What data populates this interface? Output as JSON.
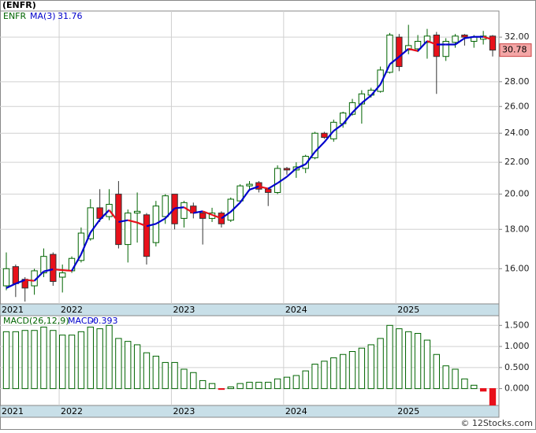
{
  "watermark": "© 12Stocks.com",
  "chart_data": [
    {
      "type": "candlestick",
      "title": "(ENFR)",
      "symbol": "ENFR",
      "categories": [
        "2021",
        null,
        null,
        null,
        null,
        null,
        null,
        "2022",
        null,
        null,
        null,
        null,
        null,
        null,
        null,
        null,
        null,
        null,
        null,
        "2023",
        null,
        null,
        null,
        null,
        null,
        null,
        null,
        null,
        null,
        null,
        null,
        "2024",
        null,
        null,
        null,
        null,
        null,
        null,
        null,
        null,
        null,
        null,
        null,
        "2025",
        null,
        null,
        null,
        null,
        null,
        null,
        null,
        null,
        null
      ],
      "open": [
        15.2,
        16.1,
        15.5,
        15.2,
        15.8,
        16.7,
        15.6,
        15.9,
        16.4,
        17.5,
        19.2,
        18.7,
        20.0,
        17.2,
        18.9,
        18.8,
        17.3,
        18.7,
        20.0,
        18.6,
        19.3,
        18.9,
        18.6,
        18.9,
        18.5,
        19.6,
        20.5,
        20.7,
        20.3,
        20.1,
        21.6,
        21.5,
        21.6,
        22.3,
        24.0,
        23.6,
        24.7,
        25.4,
        26.2,
        26.9,
        27.2,
        28.8,
        32.0,
        30.8,
        30.9,
        31.5,
        32.2,
        30.2,
        31.5,
        32.2,
        31.6,
        31.8,
        32.1
      ],
      "high": [
        16.8,
        16.2,
        15.6,
        16.0,
        17.0,
        16.8,
        16.2,
        16.6,
        18.1,
        19.7,
        20.3,
        20.3,
        20.8,
        19.1,
        20.1,
        18.9,
        19.6,
        20.0,
        20.0,
        19.6,
        19.5,
        19.0,
        19.2,
        19.0,
        19.8,
        20.6,
        20.8,
        20.8,
        20.4,
        21.8,
        21.7,
        22.0,
        22.5,
        24.1,
        24.1,
        25.0,
        25.6,
        26.6,
        27.3,
        27.5,
        29.3,
        32.4,
        32.3,
        33.2,
        32.2,
        32.8,
        32.5,
        31.9,
        32.3,
        32.3,
        32.2,
        32.6,
        32.2
      ],
      "low": [
        15.0,
        14.7,
        14.5,
        14.8,
        15.6,
        15.2,
        14.9,
        15.8,
        16.3,
        17.4,
        18.4,
        18.5,
        17.0,
        16.3,
        17.3,
        16.2,
        17.1,
        18.3,
        18.0,
        18.1,
        18.6,
        17.2,
        18.4,
        18.1,
        18.4,
        19.5,
        20.2,
        20.1,
        19.3,
        20.0,
        21.2,
        21.0,
        21.3,
        22.2,
        23.6,
        23.4,
        24.4,
        25.3,
        24.7,
        26.7,
        27.1,
        28.7,
        28.9,
        30.4,
        30.6,
        30.0,
        27.0,
        29.8,
        31.0,
        31.2,
        31.0,
        31.3,
        30.2
      ],
      "close": [
        16.0,
        15.3,
        15.1,
        15.9,
        16.6,
        15.4,
        15.8,
        16.5,
        17.8,
        19.2,
        18.6,
        19.4,
        17.2,
        18.9,
        19.0,
        16.6,
        19.3,
        19.9,
        18.3,
        19.5,
        18.9,
        18.6,
        18.9,
        18.3,
        19.7,
        20.5,
        20.6,
        20.3,
        20.1,
        21.6,
        21.5,
        21.7,
        22.4,
        24.0,
        23.7,
        24.8,
        25.5,
        26.3,
        27.0,
        27.3,
        29.0,
        32.2,
        29.3,
        31.2,
        31.6,
        32.1,
        30.2,
        31.6,
        32.1,
        32.0,
        32.0,
        32.1,
        30.78
      ],
      "up_color": "#006400",
      "down_color": "#e8101a",
      "ma": {
        "name": "MA(3)",
        "up_color": "#0000cc",
        "down_color": "#e8101a",
        "values": [
          15.1,
          15.3,
          15.47,
          15.43,
          15.87,
          15.97,
          15.93,
          15.9,
          16.7,
          17.83,
          18.53,
          19.07,
          18.4,
          18.5,
          18.37,
          18.17,
          18.3,
          18.6,
          19.17,
          19.23,
          18.9,
          19.0,
          18.8,
          18.6,
          18.97,
          19.5,
          20.27,
          20.47,
          20.33,
          20.67,
          21.07,
          21.6,
          21.87,
          22.7,
          23.37,
          24.17,
          24.67,
          25.53,
          26.27,
          26.87,
          27.77,
          29.5,
          30.17,
          30.9,
          30.7,
          31.63,
          31.3,
          31.3,
          31.3,
          31.9,
          32.03,
          32.03,
          31.76
        ]
      },
      "ylim": [
        14.4,
        34.6
      ],
      "log_scale": true,
      "grid": true,
      "yticks": [
        {
          "value": 16,
          "label": "16.00"
        },
        {
          "value": 18,
          "label": "18.00"
        },
        {
          "value": 20,
          "label": "20.00"
        },
        {
          "value": 22,
          "label": "22.00"
        },
        {
          "value": 24,
          "label": "24.00"
        },
        {
          "value": 26,
          "label": "26.00"
        },
        {
          "value": 28,
          "label": "28.00"
        },
        {
          "value": 32,
          "label": "32.00"
        }
      ]
    },
    {
      "type": "bar",
      "title": "MACD(26,12,9)",
      "value_prefix": "MACD:",
      "categories": [
        "2021",
        null,
        null,
        null,
        null,
        null,
        null,
        "2022",
        null,
        null,
        null,
        null,
        null,
        null,
        null,
        null,
        null,
        null,
        null,
        "2023",
        null,
        null,
        null,
        null,
        null,
        null,
        null,
        null,
        null,
        null,
        null,
        "2024",
        null,
        null,
        null,
        null,
        null,
        null,
        null,
        null,
        null,
        null,
        null,
        "2025",
        null,
        null,
        null,
        null,
        null,
        null,
        null,
        null,
        null
      ],
      "values": [
        1.35,
        1.35,
        1.38,
        1.38,
        1.46,
        1.38,
        1.27,
        1.27,
        1.35,
        1.46,
        1.42,
        1.5,
        1.19,
        1.12,
        1.04,
        0.85,
        0.77,
        0.62,
        0.62,
        0.46,
        0.38,
        0.19,
        0.12,
        -0.02,
        0.04,
        0.12,
        0.15,
        0.15,
        0.15,
        0.23,
        0.27,
        0.31,
        0.42,
        0.58,
        0.65,
        0.73,
        0.81,
        0.88,
        0.96,
        1.04,
        1.19,
        1.5,
        1.42,
        1.35,
        1.31,
        1.15,
        0.81,
        0.54,
        0.46,
        0.23,
        0.08,
        -0.06,
        -0.393
      ],
      "up_color": "#006400",
      "down_color": "#e8101a",
      "ylim": [
        -0.4,
        1.73
      ],
      "grid": true,
      "yticks": [
        {
          "value": 0,
          "label": "0.000"
        },
        {
          "value": 0.5,
          "label": "0.500"
        },
        {
          "value": 1,
          "label": "1.000"
        },
        {
          "value": 1.5,
          "label": "1.500"
        }
      ]
    }
  ]
}
